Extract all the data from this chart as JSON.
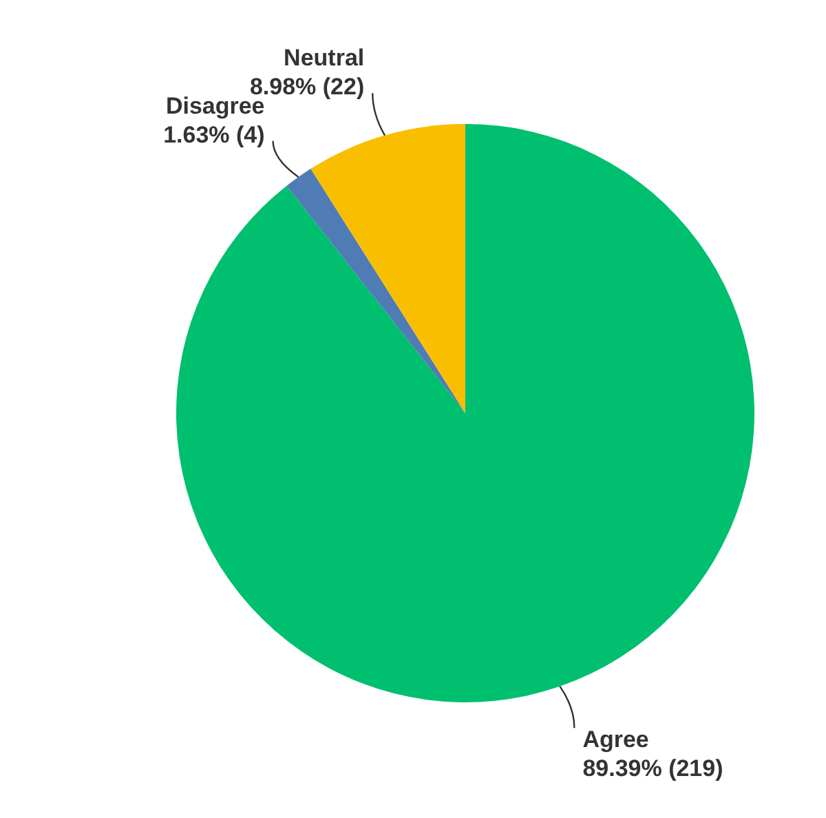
{
  "chart_data": {
    "type": "pie",
    "categories": [
      "Agree",
      "Disagree",
      "Neutral"
    ],
    "values": [
      219,
      4,
      22
    ],
    "value_labels": [
      "89.39% (219)",
      "1.63% (4)",
      "8.98% (22)"
    ],
    "colors": [
      "#00bf6f",
      "#507cb6",
      "#f9be00"
    ]
  }
}
